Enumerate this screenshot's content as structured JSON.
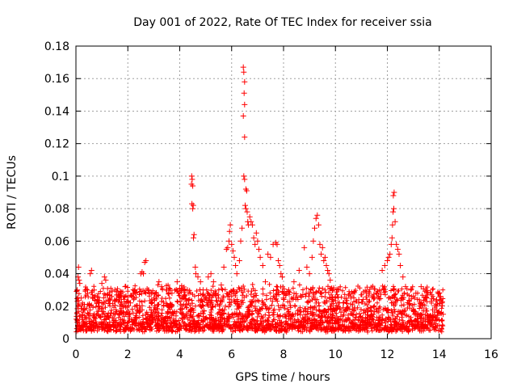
{
  "chart_data": {
    "type": "scatter",
    "title": "Day 001 of 2022, Rate Of TEC Index for receiver ssia",
    "xlabel": "GPS time / hours",
    "ylabel": "ROTI / TECUs",
    "xlim": [
      0,
      16
    ],
    "ylim": [
      0,
      0.18
    ],
    "xticks": [
      0,
      2,
      4,
      6,
      8,
      10,
      12,
      14,
      16
    ],
    "xtick_labels": [
      "0",
      "2",
      "4",
      "6",
      "8",
      "10",
      "12",
      "14",
      "16"
    ],
    "yticks": [
      0,
      0.02,
      0.04,
      0.06,
      0.08,
      0.1,
      0.12,
      0.14,
      0.16,
      0.18
    ],
    "ytick_labels": [
      "0",
      "0.02",
      "0.04",
      "0.06",
      "0.08",
      "0.1",
      "0.12",
      "0.14",
      "0.16",
      "0.18"
    ],
    "grid": true,
    "marker": "+",
    "color": "#ff0000",
    "series": [
      {
        "name": "ROTI",
        "points": [
          [
            0.02,
            0.012
          ],
          [
            0.05,
            0.03
          ],
          [
            0.08,
            0.038
          ],
          [
            0.1,
            0.044
          ],
          [
            0.12,
            0.036
          ],
          [
            0.15,
            0.034
          ],
          [
            0.2,
            0.025
          ],
          [
            0.3,
            0.018
          ],
          [
            0.45,
            0.028
          ],
          [
            0.55,
            0.04
          ],
          [
            0.6,
            0.042
          ],
          [
            0.7,
            0.03
          ],
          [
            0.9,
            0.02
          ],
          [
            1.0,
            0.034
          ],
          [
            1.1,
            0.038
          ],
          [
            1.15,
            0.036
          ],
          [
            1.3,
            0.025
          ],
          [
            1.5,
            0.03
          ],
          [
            1.7,
            0.02
          ],
          [
            1.9,
            0.032
          ],
          [
            2.1,
            0.022
          ],
          [
            2.3,
            0.028
          ],
          [
            2.5,
            0.04
          ],
          [
            2.55,
            0.041
          ],
          [
            2.65,
            0.047
          ],
          [
            2.7,
            0.048
          ],
          [
            2.6,
            0.04
          ],
          [
            2.8,
            0.03
          ],
          [
            3.0,
            0.025
          ],
          [
            3.2,
            0.035
          ],
          [
            3.3,
            0.032
          ],
          [
            3.5,
            0.03
          ],
          [
            3.7,
            0.028
          ],
          [
            3.9,
            0.035
          ],
          [
            4.0,
            0.031
          ],
          [
            4.2,
            0.027
          ],
          [
            4.3,
            0.03
          ],
          [
            4.45,
            0.095
          ],
          [
            4.48,
            0.098
          ],
          [
            4.46,
            0.1
          ],
          [
            4.5,
            0.094
          ],
          [
            4.47,
            0.083
          ],
          [
            4.52,
            0.082
          ],
          [
            4.5,
            0.08
          ],
          [
            4.55,
            0.064
          ],
          [
            4.53,
            0.062
          ],
          [
            4.6,
            0.044
          ],
          [
            4.62,
            0.04
          ],
          [
            4.7,
            0.038
          ],
          [
            4.8,
            0.035
          ],
          [
            4.9,
            0.03
          ],
          [
            5.0,
            0.025
          ],
          [
            5.1,
            0.038
          ],
          [
            5.2,
            0.04
          ],
          [
            5.3,
            0.035
          ],
          [
            5.4,
            0.028
          ],
          [
            5.5,
            0.025
          ],
          [
            5.6,
            0.033
          ],
          [
            5.7,
            0.044
          ],
          [
            5.8,
            0.055
          ],
          [
            5.85,
            0.056
          ],
          [
            5.9,
            0.06
          ],
          [
            5.92,
            0.066
          ],
          [
            5.95,
            0.07
          ],
          [
            6.0,
            0.058
          ],
          [
            6.05,
            0.054
          ],
          [
            6.1,
            0.05
          ],
          [
            6.15,
            0.045
          ],
          [
            6.2,
            0.04
          ],
          [
            6.3,
            0.048
          ],
          [
            6.35,
            0.06
          ],
          [
            6.4,
            0.068
          ],
          [
            6.45,
            0.167
          ],
          [
            6.47,
            0.164
          ],
          [
            6.5,
            0.158
          ],
          [
            6.48,
            0.151
          ],
          [
            6.5,
            0.144
          ],
          [
            6.45,
            0.137
          ],
          [
            6.5,
            0.124
          ],
          [
            6.47,
            0.1
          ],
          [
            6.5,
            0.098
          ],
          [
            6.55,
            0.092
          ],
          [
            6.58,
            0.091
          ],
          [
            6.52,
            0.082
          ],
          [
            6.55,
            0.08
          ],
          [
            6.6,
            0.078
          ],
          [
            6.62,
            0.072
          ],
          [
            6.65,
            0.07
          ],
          [
            6.7,
            0.075
          ],
          [
            6.75,
            0.072
          ],
          [
            6.8,
            0.07
          ],
          [
            6.85,
            0.062
          ],
          [
            6.9,
            0.058
          ],
          [
            6.95,
            0.065
          ],
          [
            7.0,
            0.06
          ],
          [
            7.05,
            0.055
          ],
          [
            7.1,
            0.05
          ],
          [
            7.2,
            0.045
          ],
          [
            7.3,
            0.035
          ],
          [
            7.4,
            0.052
          ],
          [
            7.5,
            0.05
          ],
          [
            7.6,
            0.058
          ],
          [
            7.7,
            0.059
          ],
          [
            7.75,
            0.058
          ],
          [
            7.8,
            0.048
          ],
          [
            7.85,
            0.045
          ],
          [
            7.9,
            0.04
          ],
          [
            7.95,
            0.038
          ],
          [
            8.0,
            0.025
          ],
          [
            8.2,
            0.03
          ],
          [
            8.4,
            0.035
          ],
          [
            8.6,
            0.042
          ],
          [
            8.8,
            0.056
          ],
          [
            8.9,
            0.044
          ],
          [
            9.0,
            0.04
          ],
          [
            9.1,
            0.05
          ],
          [
            9.15,
            0.06
          ],
          [
            9.2,
            0.068
          ],
          [
            9.25,
            0.074
          ],
          [
            9.3,
            0.076
          ],
          [
            9.35,
            0.07
          ],
          [
            9.4,
            0.058
          ],
          [
            9.45,
            0.052
          ],
          [
            9.5,
            0.056
          ],
          [
            9.55,
            0.048
          ],
          [
            9.6,
            0.05
          ],
          [
            9.65,
            0.045
          ],
          [
            9.7,
            0.042
          ],
          [
            9.75,
            0.04
          ],
          [
            9.8,
            0.036
          ],
          [
            9.9,
            0.03
          ],
          [
            10.0,
            0.025
          ],
          [
            10.3,
            0.022
          ],
          [
            10.6,
            0.026
          ],
          [
            10.9,
            0.024
          ],
          [
            11.2,
            0.028
          ],
          [
            11.5,
            0.025
          ],
          [
            11.7,
            0.03
          ],
          [
            11.8,
            0.042
          ],
          [
            11.9,
            0.045
          ],
          [
            12.0,
            0.048
          ],
          [
            12.05,
            0.05
          ],
          [
            12.1,
            0.052
          ],
          [
            12.15,
            0.058
          ],
          [
            12.18,
            0.062
          ],
          [
            12.2,
            0.07
          ],
          [
            12.22,
            0.078
          ],
          [
            12.25,
            0.08
          ],
          [
            12.23,
            0.088
          ],
          [
            12.26,
            0.09
          ],
          [
            12.3,
            0.072
          ],
          [
            12.35,
            0.058
          ],
          [
            12.4,
            0.055
          ],
          [
            12.45,
            0.052
          ],
          [
            12.5,
            0.045
          ],
          [
            12.6,
            0.038
          ],
          [
            12.7,
            0.032
          ],
          [
            12.9,
            0.03
          ],
          [
            13.1,
            0.028
          ],
          [
            13.3,
            0.032
          ],
          [
            13.5,
            0.025
          ],
          [
            13.7,
            0.027
          ],
          [
            13.9,
            0.024
          ],
          [
            14.0,
            0.028
          ],
          [
            14.05,
            0.026
          ],
          [
            14.1,
            0.022
          ],
          [
            14.15,
            0.015
          ]
        ]
      }
    ]
  }
}
